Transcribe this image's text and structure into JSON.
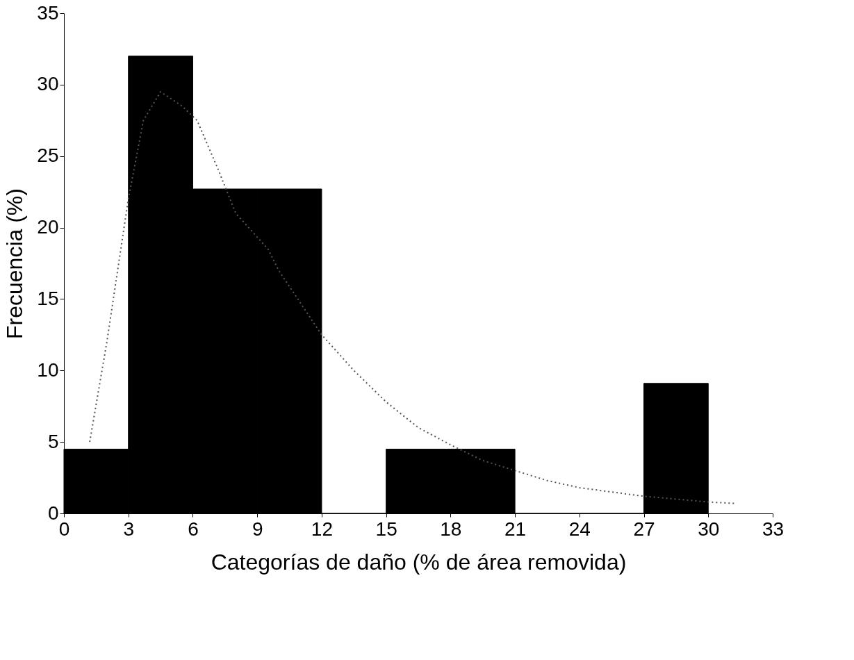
{
  "chart_data": {
    "type": "histogram",
    "xlabel": "Categorías de daño (% de área removida)",
    "ylabel": "Frecuencia (%)",
    "bins": [
      0,
      3,
      6,
      9,
      12,
      15,
      18,
      21,
      24,
      27,
      30
    ],
    "values": [
      4.5,
      32,
      22.7,
      22.7,
      0,
      4.5,
      4.5,
      0,
      0,
      9.1
    ],
    "color": "#000000",
    "series": [
      {
        "type": "line",
        "color": "#555555",
        "line_style": "dotted",
        "x": [
          1.2,
          2,
          3,
          3.7,
          4.5,
          5.5,
          6.2,
          7.2,
          8,
          9.5,
          10,
          12,
          13.5,
          15,
          16.5,
          18,
          19.5,
          21,
          22.5,
          24,
          25.5,
          27,
          28.5,
          30,
          31.2
        ],
        "values": [
          5,
          12,
          22,
          27.5,
          29.5,
          28.5,
          27.5,
          24,
          21,
          18.5,
          17,
          12.5,
          10,
          7.8,
          6,
          4.8,
          3.7,
          3,
          2.3,
          1.8,
          1.5,
          1.2,
          1,
          0.8,
          0.7
        ]
      }
    ],
    "xlim": [
      0,
      33
    ],
    "xticks": [
      0,
      3,
      6,
      9,
      12,
      15,
      18,
      21,
      24,
      27,
      30,
      33
    ],
    "ylim": [
      0,
      35
    ],
    "yticks": [
      0,
      5,
      10,
      15,
      20,
      25,
      30,
      35
    ],
    "grid": false
  }
}
